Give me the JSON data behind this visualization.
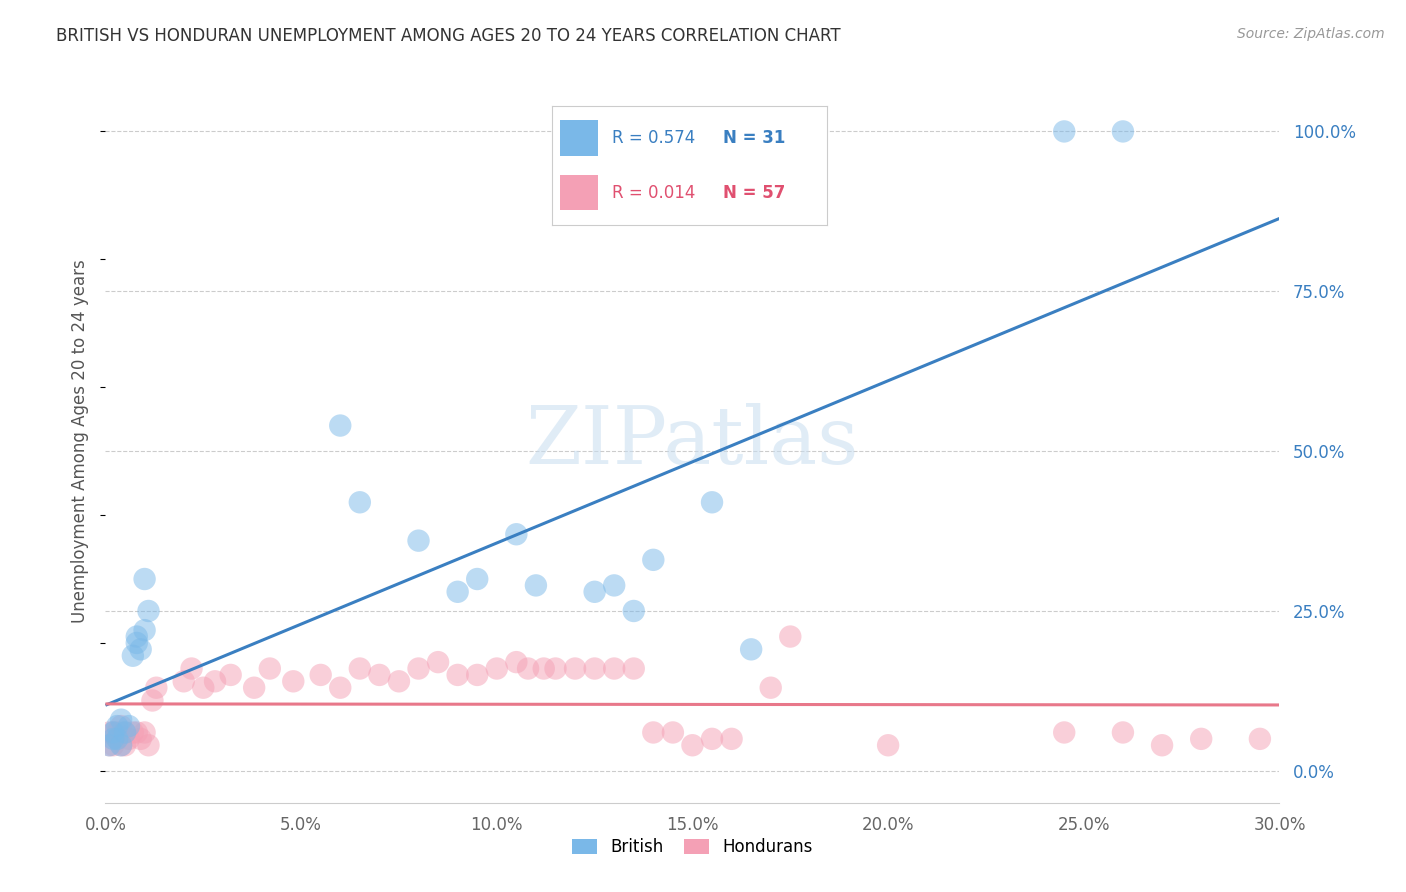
{
  "title": "BRITISH VS HONDURAN UNEMPLOYMENT AMONG AGES 20 TO 24 YEARS CORRELATION CHART",
  "source": "Source: ZipAtlas.com",
  "ylabel": "Unemployment Among Ages 20 to 24 years",
  "xlim": [
    0.0,
    0.3
  ],
  "ylim": [
    -0.05,
    1.08
  ],
  "xticks": [
    0.0,
    0.05,
    0.1,
    0.15,
    0.2,
    0.25,
    0.3
  ],
  "xticklabels": [
    "0.0%",
    "5.0%",
    "10.0%",
    "15.0%",
    "20.0%",
    "25.0%",
    "30.0%"
  ],
  "yticks_right": [
    0.0,
    0.25,
    0.5,
    0.75,
    1.0
  ],
  "yticklabels_right": [
    "0.0%",
    "25.0%",
    "50.0%",
    "75.0%",
    "100.0%"
  ],
  "british_R": 0.574,
  "british_N": 31,
  "honduran_R": 0.014,
  "honduran_N": 57,
  "british_color": "#7ab8e8",
  "honduran_color": "#f4a0b5",
  "british_line_color": "#3a7fc1",
  "honduran_line_color": "#e8788a",
  "watermark": "ZIPatlas",
  "british_x": [
    0.001,
    0.002,
    0.002,
    0.003,
    0.003,
    0.004,
    0.004,
    0.005,
    0.006,
    0.007,
    0.008,
    0.008,
    0.009,
    0.01,
    0.01,
    0.011,
    0.06,
    0.065,
    0.08,
    0.09,
    0.095,
    0.105,
    0.11,
    0.125,
    0.14,
    0.155,
    0.165,
    0.13,
    0.135,
    0.245,
    0.26
  ],
  "british_y": [
    0.04,
    0.05,
    0.06,
    0.05,
    0.07,
    0.04,
    0.08,
    0.06,
    0.07,
    0.18,
    0.2,
    0.21,
    0.19,
    0.22,
    0.3,
    0.25,
    0.54,
    0.42,
    0.36,
    0.28,
    0.3,
    0.37,
    0.29,
    0.28,
    0.33,
    0.42,
    0.19,
    0.29,
    0.25,
    1.0,
    1.0
  ],
  "honduran_x": [
    0.001,
    0.001,
    0.002,
    0.002,
    0.003,
    0.003,
    0.004,
    0.004,
    0.005,
    0.005,
    0.006,
    0.007,
    0.008,
    0.009,
    0.01,
    0.011,
    0.012,
    0.013,
    0.02,
    0.022,
    0.025,
    0.028,
    0.032,
    0.038,
    0.042,
    0.048,
    0.055,
    0.06,
    0.065,
    0.07,
    0.075,
    0.08,
    0.085,
    0.09,
    0.095,
    0.1,
    0.105,
    0.108,
    0.112,
    0.115,
    0.12,
    0.125,
    0.13,
    0.135,
    0.14,
    0.145,
    0.15,
    0.155,
    0.16,
    0.17,
    0.175,
    0.2,
    0.245,
    0.26,
    0.27,
    0.28,
    0.295
  ],
  "honduran_y": [
    0.06,
    0.04,
    0.06,
    0.04,
    0.05,
    0.06,
    0.04,
    0.07,
    0.06,
    0.04,
    0.05,
    0.06,
    0.06,
    0.05,
    0.06,
    0.04,
    0.11,
    0.13,
    0.14,
    0.16,
    0.13,
    0.14,
    0.15,
    0.13,
    0.16,
    0.14,
    0.15,
    0.13,
    0.16,
    0.15,
    0.14,
    0.16,
    0.17,
    0.15,
    0.15,
    0.16,
    0.17,
    0.16,
    0.16,
    0.16,
    0.16,
    0.16,
    0.16,
    0.16,
    0.06,
    0.06,
    0.04,
    0.05,
    0.05,
    0.13,
    0.21,
    0.04,
    0.06,
    0.06,
    0.04,
    0.05,
    0.05
  ]
}
